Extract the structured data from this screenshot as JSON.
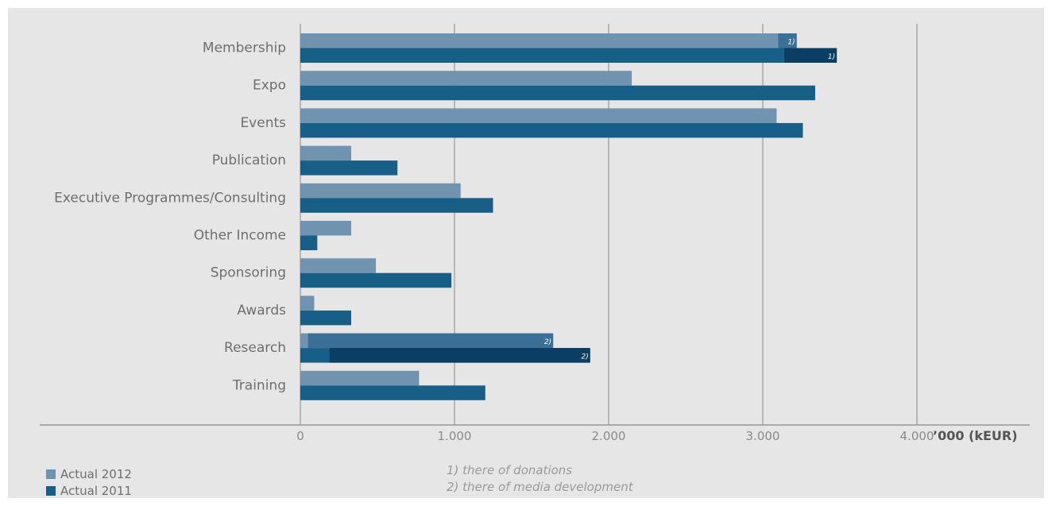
{
  "chart_data": {
    "type": "bar",
    "orientation": "horizontal",
    "categories": [
      "Membership",
      "Expo",
      "Events",
      "Publication",
      "Executive Programmes/Consulting",
      "Other Income",
      "Sponsoring",
      "Awards",
      "Research",
      "Training"
    ],
    "series": [
      {
        "name": "Actual 2012",
        "color": "#7094b0",
        "values": [
          3220,
          2150,
          3090,
          330,
          1040,
          330,
          490,
          90,
          1640,
          770
        ]
      },
      {
        "name": "Actual 2011",
        "color": "#175f86",
        "values": [
          3480,
          3340,
          3260,
          630,
          1250,
          110,
          980,
          330,
          1880,
          1200
        ]
      }
    ],
    "breakdowns": [
      {
        "category": "Membership",
        "series": "Actual 2012",
        "base": 3100,
        "segment_value": 120,
        "segment_color": "#3c6f95",
        "marker": "1)"
      },
      {
        "category": "Membership",
        "series": "Actual 2011",
        "base": 3140,
        "segment_value": 340,
        "segment_color": "#0a3f63",
        "marker": "1)"
      },
      {
        "category": "Research",
        "series": "Actual 2012",
        "base": 50,
        "segment_value": 1590,
        "segment_color": "#3c6f95",
        "marker": "2)"
      },
      {
        "category": "Research",
        "series": "Actual 2011",
        "base": 190,
        "segment_value": 1690,
        "segment_color": "#0a3f63",
        "marker": "2)"
      }
    ],
    "x_ticks": [
      0,
      1000,
      2000,
      3000,
      4000
    ],
    "x_tick_labels": [
      "0",
      "1.000",
      "2.000",
      "3.000",
      "4.000"
    ],
    "xlim": [
      0,
      4000
    ],
    "axis_unit": "’000 (kEUR)",
    "grid": true,
    "legend_position": "bottom-left"
  },
  "footnotes": [
    "1) there of donations",
    "2) there of media development"
  ],
  "colors": {
    "panel_background": "#e6e6e6",
    "gridline": "#888888",
    "category_label": "#6e6e6e",
    "tick_label": "#8a8a8a",
    "unit_label": "#555555",
    "marker_text": "#ffffff"
  }
}
